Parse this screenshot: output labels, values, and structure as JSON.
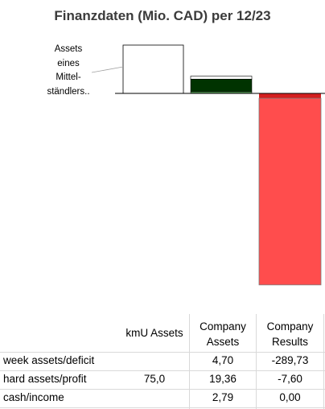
{
  "chart_data": {
    "type": "bar",
    "title": "Finanzdaten (Mio. CAD) per 12/23",
    "annotation": [
      "Assets",
      "eines",
      "Mittel-",
      "ständlers.."
    ],
    "series": [
      {
        "name": "week assets/deficit",
        "values": [
          0,
          4.7,
          -289.73
        ],
        "color": "#ffffff"
      },
      {
        "name": "hard assets/profit",
        "values": [
          75.0,
          19.36,
          -7.6
        ],
        "color": "#003300"
      },
      {
        "name": "cash/income",
        "values": [
          0,
          2.79,
          0.0
        ],
        "color": "#4f8c4f"
      }
    ],
    "categories": [
      "kmU Assets",
      "Company Assets",
      "Company Results"
    ],
    "colors": {
      "deficit": "#ff4d4d",
      "loss": "#d31f1f",
      "outline": "#000000"
    }
  },
  "table": {
    "headers": [
      "kmU Assets",
      "Company Assets",
      "Company Results"
    ],
    "header_lines": [
      [
        "kmU Assets"
      ],
      [
        "Company",
        "Assets"
      ],
      [
        "Company",
        "Results"
      ]
    ],
    "rows": [
      {
        "label": "week assets/deficit",
        "cells": [
          "",
          "4,70",
          "-289,73"
        ]
      },
      {
        "label": "hard assets/profit",
        "cells": [
          "75,0",
          "19,36",
          "-7,60"
        ]
      },
      {
        "label": "cash/income",
        "cells": [
          "",
          "2,79",
          "0,00"
        ]
      }
    ]
  }
}
